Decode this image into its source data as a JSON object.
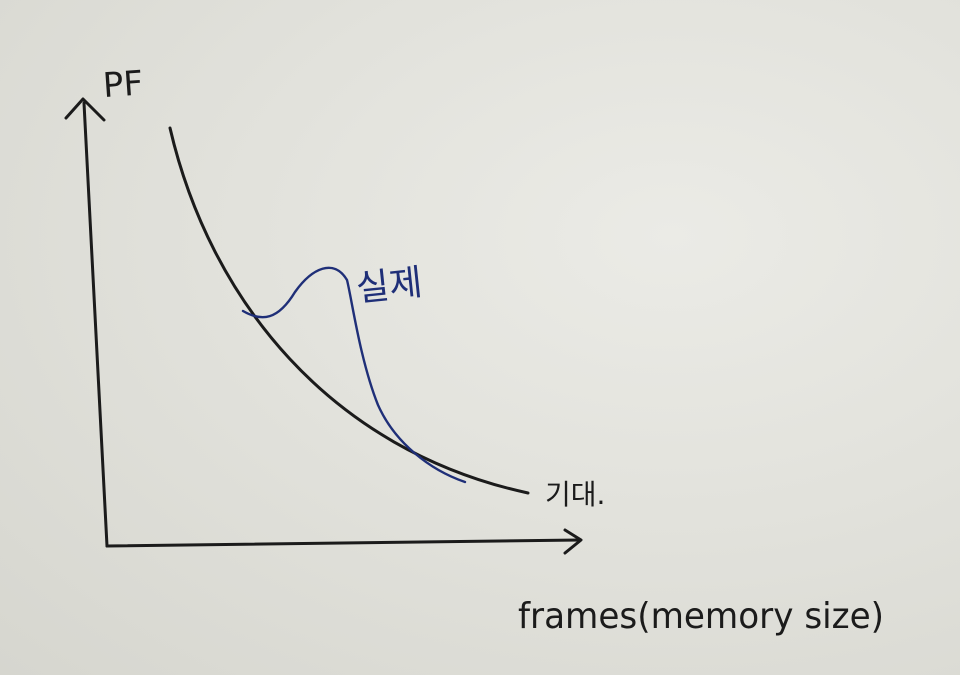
{
  "sketch": {
    "y_axis_label": "PF",
    "x_axis_label": "frames(memory size)",
    "black_curve_label": "기대.",
    "blue_curve_label": "실제"
  },
  "colors": {
    "paper": "#e4e4de",
    "ink_black": "#1b1b1b",
    "ink_blue": "#1f2f78"
  }
}
